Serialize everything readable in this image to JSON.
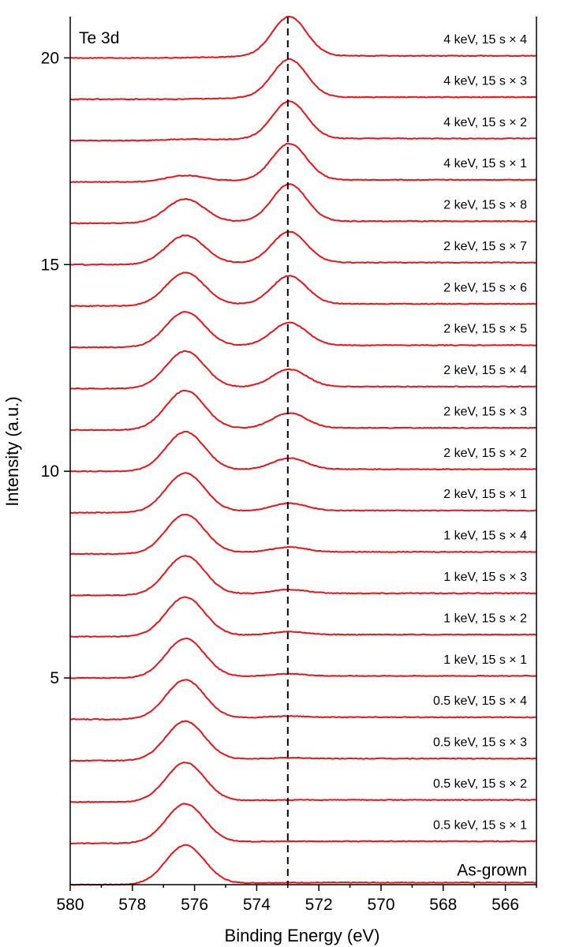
{
  "chart_data": {
    "type": "line",
    "title": "",
    "panel_label": "Te 3d",
    "xlabel": "Binding Energy (eV)",
    "ylabel": "Intensity (a.u.)",
    "x_reversed": true,
    "xlim": [
      580,
      565
    ],
    "ylim": [
      0,
      21
    ],
    "x_ticks": [
      580,
      578,
      576,
      574,
      572,
      570,
      568,
      566
    ],
    "y_ticks": [
      5,
      10,
      15,
      20
    ],
    "grid": false,
    "reference_line": {
      "x": 573.0,
      "style": "dashed",
      "color": "#000000"
    },
    "series_color": "#e8141b",
    "series": [
      {
        "name": "As-grown",
        "offset": 0.0,
        "peak_576": 0.95,
        "peak_573": 0.0
      },
      {
        "name": "0.5 keV, 15 s × 1",
        "offset": 1.0,
        "peak_576": 0.95,
        "peak_573": 0.0
      },
      {
        "name": "0.5 keV, 15 s × 2",
        "offset": 2.0,
        "peak_576": 0.95,
        "peak_573": 0.0
      },
      {
        "name": "0.5 keV, 15 s × 3",
        "offset": 3.0,
        "peak_576": 0.95,
        "peak_573": 0.02
      },
      {
        "name": "0.5 keV, 15 s × 4",
        "offset": 4.0,
        "peak_576": 0.95,
        "peak_573": 0.03
      },
      {
        "name": "1 keV, 15 s × 1",
        "offset": 5.0,
        "peak_576": 0.95,
        "peak_573": 0.05
      },
      {
        "name": "1 keV, 15 s × 2",
        "offset": 6.0,
        "peak_576": 0.95,
        "peak_573": 0.07
      },
      {
        "name": "1 keV, 15 s × 3",
        "offset": 7.0,
        "peak_576": 0.95,
        "peak_573": 0.09
      },
      {
        "name": "1 keV, 15 s × 4",
        "offset": 8.0,
        "peak_576": 0.95,
        "peak_573": 0.12
      },
      {
        "name": "2 keV, 15 s × 1",
        "offset": 9.0,
        "peak_576": 0.95,
        "peak_573": 0.18
      },
      {
        "name": "2 keV, 15 s × 2",
        "offset": 10.0,
        "peak_576": 0.95,
        "peak_573": 0.27
      },
      {
        "name": "2 keV, 15 s × 3",
        "offset": 11.0,
        "peak_576": 0.95,
        "peak_573": 0.36
      },
      {
        "name": "2 keV, 15 s × 4",
        "offset": 12.0,
        "peak_576": 0.9,
        "peak_573": 0.42
      },
      {
        "name": "2 keV, 15 s × 5",
        "offset": 13.0,
        "peak_576": 0.85,
        "peak_573": 0.55
      },
      {
        "name": "2 keV, 15 s × 6",
        "offset": 14.0,
        "peak_576": 0.8,
        "peak_573": 0.68
      },
      {
        "name": "2 keV, 15 s × 7",
        "offset": 15.0,
        "peak_576": 0.7,
        "peak_573": 0.75
      },
      {
        "name": "2 keV, 15 s × 8",
        "offset": 16.0,
        "peak_576": 0.58,
        "peak_573": 0.9
      },
      {
        "name": "4 keV, 15 s × 1",
        "offset": 17.0,
        "peak_576": 0.15,
        "peak_573": 0.88
      },
      {
        "name": "4 keV, 15 s × 2",
        "offset": 18.0,
        "peak_576": 0.03,
        "peak_573": 0.9
      },
      {
        "name": "4 keV, 15 s × 3",
        "offset": 19.0,
        "peak_576": 0.0,
        "peak_573": 0.92
      },
      {
        "name": "4 keV, 15 s × 4",
        "offset": 20.0,
        "peak_576": 0.0,
        "peak_573": 0.95
      }
    ]
  }
}
